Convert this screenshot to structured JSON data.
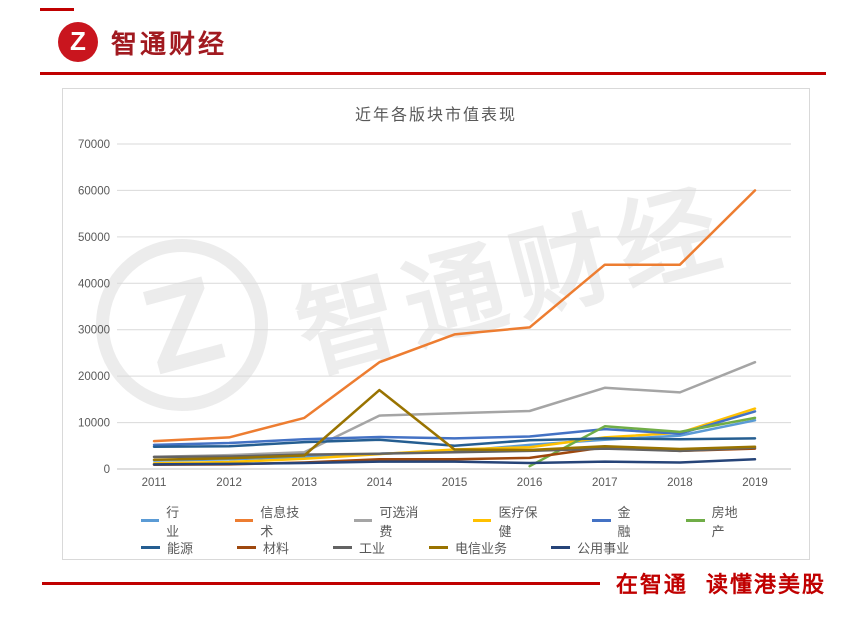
{
  "page": {
    "brand": {
      "logo_text": "Z",
      "name": "智通财经"
    },
    "footer": {
      "slogan": "在智通 读懂港美股"
    },
    "colors": {
      "brand_red": "#C00000",
      "axis_text": "#595959",
      "gridline": "#D9D9D9"
    }
  },
  "chart_data": {
    "type": "line",
    "title": "近年各版块市值表现",
    "xlabel": "",
    "ylabel": "",
    "categories": [
      "2011",
      "2012",
      "2013",
      "2014",
      "2015",
      "2016",
      "2017",
      "2018",
      "2019"
    ],
    "ylim": [
      0,
      70000
    ],
    "ytick_step": 10000,
    "grid": true,
    "legend_position": "bottom",
    "watermark": "智通财经",
    "series": [
      {
        "name": "行业",
        "color": "#5B9BD5",
        "values": [
          1800,
          2100,
          2600,
          3300,
          3800,
          5200,
          6300,
          7200,
          10500
        ]
      },
      {
        "name": "信息技术",
        "color": "#ED7D31",
        "values": [
          6000,
          6800,
          11000,
          23000,
          29000,
          30500,
          44000,
          44000,
          60000
        ]
      },
      {
        "name": "可选消费",
        "color": "#A5A5A5",
        "values": [
          2600,
          3000,
          3600,
          11500,
          12000,
          12500,
          17500,
          16500,
          23000
        ]
      },
      {
        "name": "医疗保健",
        "color": "#FFC000",
        "values": [
          1200,
          1500,
          2200,
          3200,
          4200,
          4700,
          6800,
          7800,
          13000
        ]
      },
      {
        "name": "金融",
        "color": "#4472C4",
        "values": [
          5200,
          5600,
          6400,
          6900,
          6600,
          7000,
          8600,
          7600,
          12400
        ]
      },
      {
        "name": "房地产",
        "color": "#70AD47",
        "values": [
          null,
          null,
          null,
          null,
          null,
          600,
          9200,
          8000,
          11000
        ]
      },
      {
        "name": "能源",
        "color": "#255E91",
        "values": [
          4800,
          4900,
          5800,
          6300,
          5000,
          6200,
          6600,
          6400,
          6600
        ]
      },
      {
        "name": "材料",
        "color": "#9E480E",
        "values": [
          900,
          1000,
          1400,
          2100,
          2100,
          2400,
          4700,
          3900,
          4400
        ]
      },
      {
        "name": "工业",
        "color": "#636363",
        "values": [
          2600,
          2700,
          3100,
          3300,
          3600,
          3900,
          4400,
          3900,
          4600
        ]
      },
      {
        "name": "电信业务",
        "color": "#997300",
        "values": [
          2000,
          2300,
          2900,
          17000,
          4200,
          4100,
          4900,
          4300,
          4800
        ]
      },
      {
        "name": "公用事业",
        "color": "#264478",
        "values": [
          1000,
          1100,
          1300,
          1600,
          1600,
          1300,
          1600,
          1400,
          2100
        ]
      }
    ]
  }
}
